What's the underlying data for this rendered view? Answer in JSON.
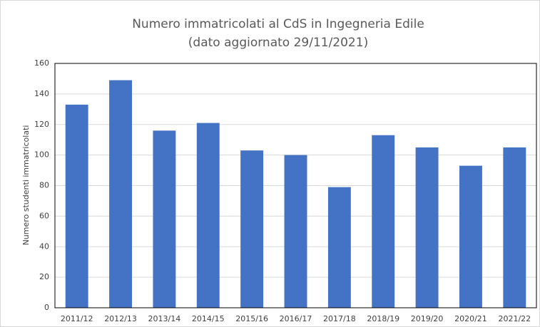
{
  "chart_data": {
    "type": "bar",
    "title": "Numero immatricolati al CdS in Ingegneria Edile",
    "subtitle": "(dato aggiornato 29/11/2021)",
    "y_label": "Numero studenti immatricolati",
    "categories": [
      "2011/12",
      "2012/13",
      "2013/14",
      "2014/15",
      "2015/16",
      "2016/17",
      "2017/18",
      "2018/19",
      "2019/20",
      "2020/21",
      "2021/22"
    ],
    "values": [
      133,
      149,
      116,
      121,
      103,
      100,
      79,
      113,
      105,
      93,
      105
    ],
    "color": "#4472c4",
    "ylim": [
      0,
      160
    ],
    "yticks": [
      0,
      20,
      40,
      60,
      80,
      100,
      120,
      140,
      160
    ],
    "grid": true
  }
}
